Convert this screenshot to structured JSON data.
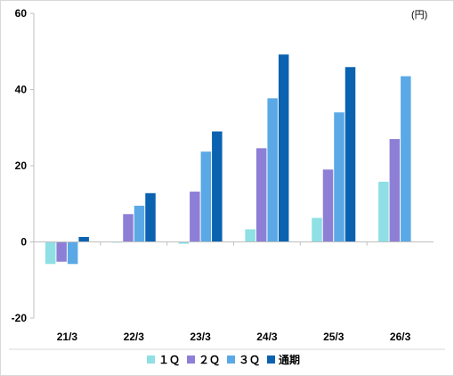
{
  "chart_data": {
    "type": "bar",
    "unit_label": "(円)",
    "categories": [
      "21/3",
      "22/3",
      "23/3",
      "24/3",
      "25/3",
      "26/3"
    ],
    "series": [
      {
        "name": "１Ｑ",
        "color": "#8ee0e4",
        "values": [
          -5.8,
          0,
          -0.5,
          3.3,
          6.3,
          15.8
        ]
      },
      {
        "name": "２Ｑ",
        "color": "#8e7fd6",
        "values": [
          -5.2,
          7.3,
          13.2,
          24.6,
          19.0,
          27.0
        ]
      },
      {
        "name": "３Ｑ",
        "color": "#5aa9e6",
        "values": [
          -5.8,
          9.5,
          23.7,
          37.7,
          34.0,
          43.5
        ]
      },
      {
        "name": "通期",
        "color": "#0a62b0",
        "values": [
          1.3,
          12.8,
          29.0,
          49.2,
          45.9,
          null
        ]
      }
    ],
    "ylim": [
      -20,
      60
    ],
    "yticks": [
      60,
      40,
      20,
      0,
      -20
    ],
    "legend_position": "bottom"
  }
}
